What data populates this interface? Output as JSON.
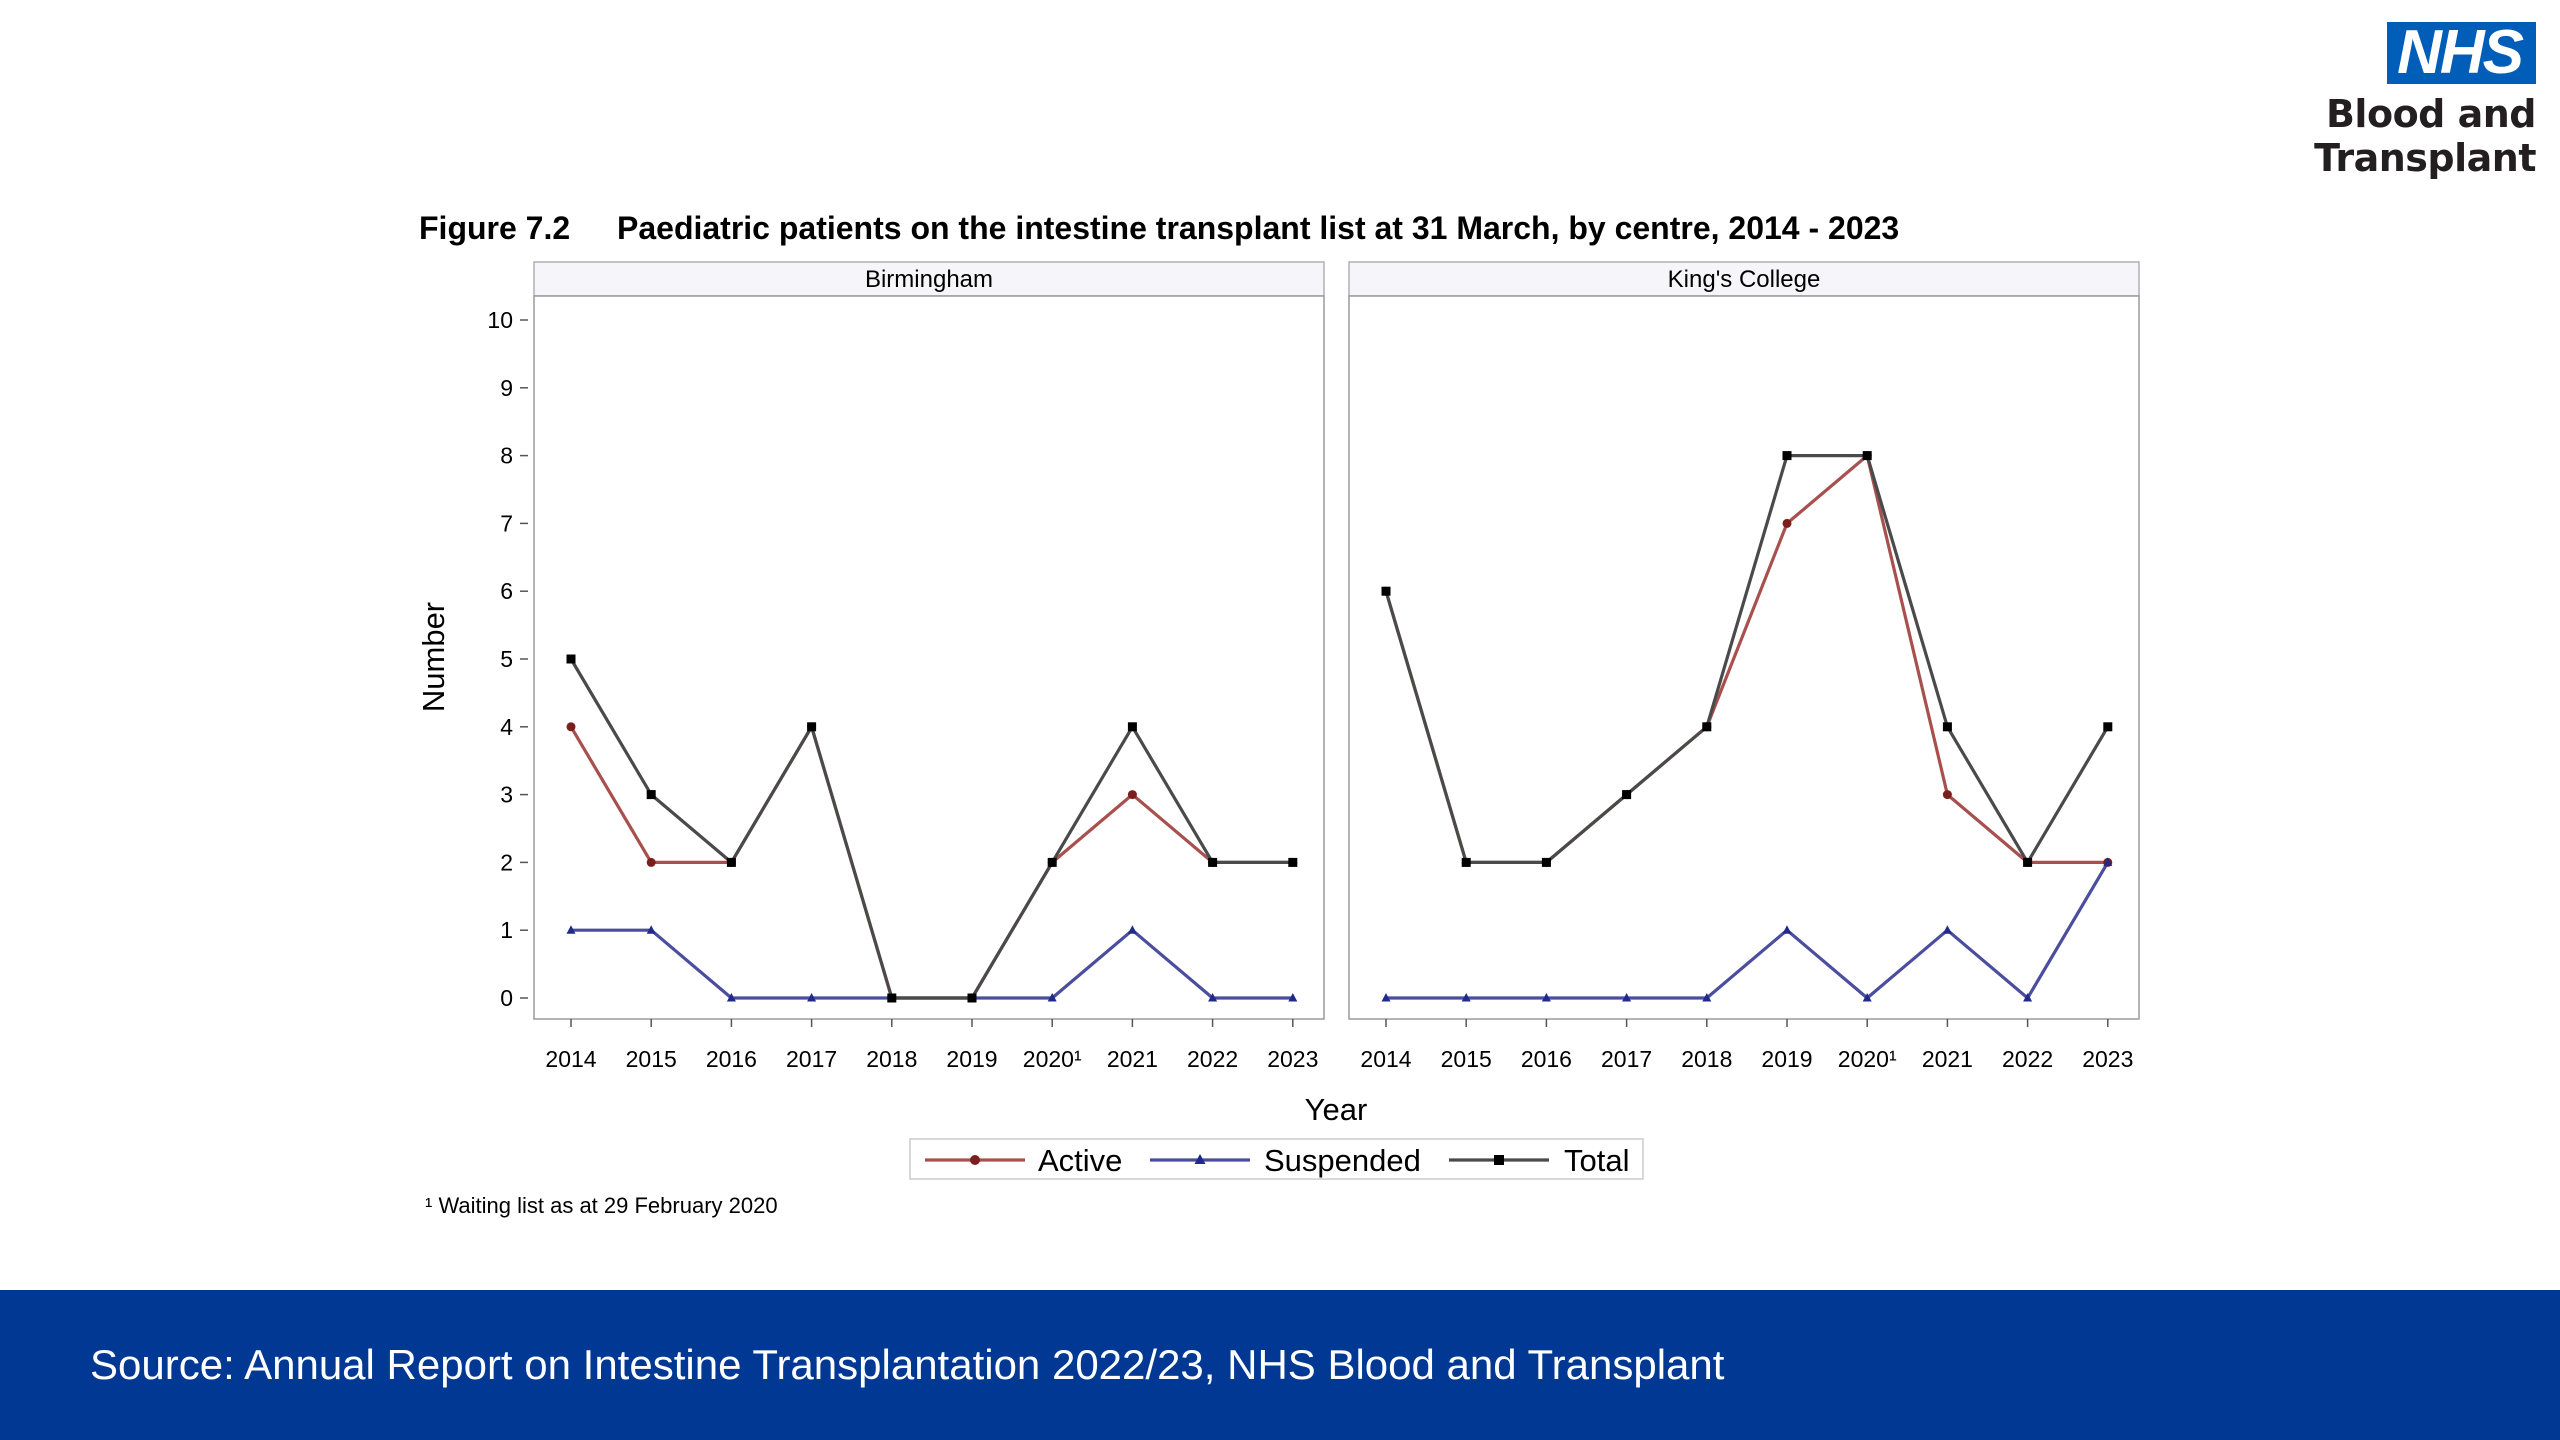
{
  "logo": {
    "nhs": "NHS",
    "org": "Blood and Transplant"
  },
  "figure": {
    "number": "Figure 7.2",
    "title": "Paediatric patients on the intestine transplant list at 31 March, by centre, 2014 - 2023"
  },
  "chart_data": {
    "type": "line",
    "panels": [
      {
        "title": "Birmingham",
        "x": [
          "2014",
          "2015",
          "2016",
          "2017",
          "2018",
          "2019",
          "2020¹",
          "2021",
          "2022",
          "2023"
        ],
        "series": [
          {
            "name": "Active",
            "values": [
              4,
              2,
              2,
              4,
              0,
              0,
              2,
              3,
              2,
              2
            ]
          },
          {
            "name": "Suspended",
            "values": [
              1,
              1,
              0,
              0,
              0,
              0,
              0,
              1,
              0,
              0
            ]
          },
          {
            "name": "Total",
            "values": [
              5,
              3,
              2,
              4,
              0,
              0,
              2,
              4,
              2,
              2
            ]
          }
        ]
      },
      {
        "title": "King's College",
        "x": [
          "2014",
          "2015",
          "2016",
          "2017",
          "2018",
          "2019",
          "2020¹",
          "2021",
          "2022",
          "2023"
        ],
        "series": [
          {
            "name": "Active",
            "values": [
              6,
              2,
              2,
              3,
              4,
              7,
              8,
              3,
              2,
              2
            ]
          },
          {
            "name": "Suspended",
            "values": [
              0,
              0,
              0,
              0,
              0,
              1,
              0,
              1,
              0,
              2
            ]
          },
          {
            "name": "Total",
            "values": [
              6,
              2,
              2,
              3,
              4,
              8,
              8,
              4,
              2,
              4
            ]
          }
        ]
      }
    ],
    "xlabel": "Year",
    "ylabel": "Number",
    "ylim": [
      0,
      10
    ],
    "yticks": [
      0,
      1,
      2,
      3,
      4,
      5,
      6,
      7,
      8,
      9,
      10
    ],
    "grid": false,
    "legend_placement": "bottom-center",
    "colors": {
      "Active": "#a8504e",
      "Suspended": "#4b4d9e",
      "Total": "#4a4a4a"
    },
    "markers": {
      "Active": "circle",
      "Suspended": "triangle",
      "Total": "square"
    }
  },
  "footnote": "¹ Waiting list as at 29 February 2020",
  "footer": {
    "source": "Source: Annual Report on Intestine Transplantation 2022/23, NHS Blood and Transplant"
  }
}
